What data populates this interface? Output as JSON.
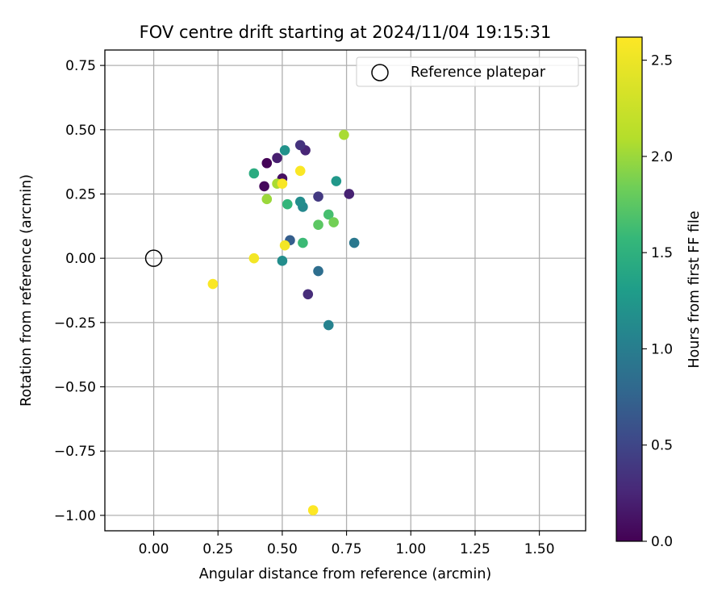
{
  "chart_data": {
    "type": "scatter",
    "title": "FOV centre drift starting at 2024/11/04 19:15:31",
    "xlabel": "Angular distance from reference (arcmin)",
    "ylabel": "Rotation from reference (arcmin)",
    "xlim": [
      -0.19,
      1.68
    ],
    "ylim": [
      -1.06,
      0.81
    ],
    "xticks": [
      0.0,
      0.25,
      0.5,
      0.75,
      1.0,
      1.25,
      1.5
    ],
    "xtick_labels": [
      "0.00",
      "0.25",
      "0.50",
      "0.75",
      "1.00",
      "1.25",
      "1.50"
    ],
    "yticks": [
      0.75,
      0.5,
      0.25,
      0.0,
      -0.25,
      -0.5,
      -0.75,
      -1.0
    ],
    "ytick_labels": [
      "0.75",
      "0.50",
      "0.25",
      "0.00",
      "−0.25",
      "−0.50",
      "−0.75",
      "−1.00"
    ],
    "grid": true,
    "legend": {
      "placement": "top-right",
      "label": "Reference platepar"
    },
    "reference_point": {
      "x": 0.0,
      "y": 0.0
    },
    "colorbar": {
      "label": "Hours from first FF file",
      "colormap": "viridis",
      "range": [
        0.0,
        2.62
      ],
      "ticks": [
        0.0,
        0.5,
        1.0,
        1.5,
        2.0,
        2.5
      ],
      "tick_labels": [
        "0.0",
        "0.5",
        "1.0",
        "1.5",
        "2.0",
        "2.5"
      ]
    },
    "points": [
      {
        "x": 0.44,
        "y": 0.37,
        "h": 0.02
      },
      {
        "x": 0.43,
        "y": 0.28,
        "h": 0.05
      },
      {
        "x": 0.5,
        "y": 0.31,
        "h": 0.1
      },
      {
        "x": 0.48,
        "y": 0.39,
        "h": 0.2
      },
      {
        "x": 0.59,
        "y": 0.42,
        "h": 0.25
      },
      {
        "x": 0.57,
        "y": 0.44,
        "h": 0.35
      },
      {
        "x": 0.76,
        "y": 0.25,
        "h": 0.22
      },
      {
        "x": 0.64,
        "y": 0.24,
        "h": 0.4
      },
      {
        "x": 0.6,
        "y": -0.14,
        "h": 0.3
      },
      {
        "x": 0.64,
        "y": -0.05,
        "h": 0.85
      },
      {
        "x": 0.53,
        "y": 0.07,
        "h": 0.7
      },
      {
        "x": 0.78,
        "y": 0.06,
        "h": 0.95
      },
      {
        "x": 0.68,
        "y": -0.26,
        "h": 1.05
      },
      {
        "x": 0.5,
        "y": -0.01,
        "h": 1.15
      },
      {
        "x": 0.58,
        "y": 0.2,
        "h": 1.1
      },
      {
        "x": 0.57,
        "y": 0.22,
        "h": 1.15
      },
      {
        "x": 0.51,
        "y": 0.42,
        "h": 1.2
      },
      {
        "x": 0.71,
        "y": 0.3,
        "h": 1.25
      },
      {
        "x": 0.39,
        "y": 0.33,
        "h": 1.45
      },
      {
        "x": 0.52,
        "y": 0.21,
        "h": 1.55
      },
      {
        "x": 0.58,
        "y": 0.06,
        "h": 1.6
      },
      {
        "x": 0.68,
        "y": 0.17,
        "h": 1.65
      },
      {
        "x": 0.64,
        "y": 0.13,
        "h": 1.75
      },
      {
        "x": 0.7,
        "y": 0.14,
        "h": 1.85
      },
      {
        "x": 0.44,
        "y": 0.23,
        "h": 2.0
      },
      {
        "x": 0.48,
        "y": 0.29,
        "h": 2.05
      },
      {
        "x": 0.74,
        "y": 0.48,
        "h": 2.05
      },
      {
        "x": 0.5,
        "y": 0.29,
        "h": 2.58
      },
      {
        "x": 0.57,
        "y": 0.34,
        "h": 2.6
      },
      {
        "x": 0.51,
        "y": 0.05,
        "h": 2.55
      },
      {
        "x": 0.39,
        "y": 0.0,
        "h": 2.55
      },
      {
        "x": 0.23,
        "y": -0.1,
        "h": 2.6
      },
      {
        "x": 0.62,
        "y": -0.98,
        "h": 2.62
      }
    ]
  }
}
